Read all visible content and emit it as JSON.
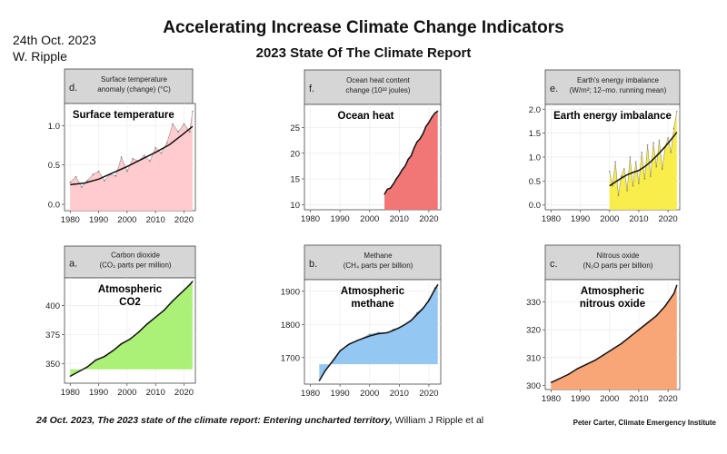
{
  "header": {
    "title": "Accelerating Increase Climate Change Indicators",
    "subtitle": "2023 State Of The Climate Report",
    "date": "24th Oct. 2023",
    "author": "W. Ripple"
  },
  "footer": {
    "citation_date": "24 Oct. 2023,",
    "citation_title": "The 2023 state of the climate report: Entering uncharted territory,",
    "citation_authors": "William J Ripple et al",
    "credit": "Peter Carter, Climate Emergency Institute"
  },
  "chart_data": [
    {
      "id": "d",
      "type": "area",
      "strip_letter": "d.",
      "strip_lines": [
        "Surface temperature",
        "anomaly (change) (°C)"
      ],
      "title": "Surface temperature",
      "color": "#ffc8cc",
      "xlim": [
        1978,
        2024
      ],
      "ylim": [
        -0.08,
        1.28
      ],
      "xticks": [
        1980,
        1990,
        2000,
        2010,
        2020
      ],
      "yticks": [
        0.0,
        0.5,
        1.0
      ],
      "ytick_labels": [
        "0.0",
        "0.5",
        "1.0"
      ],
      "area_x": [
        1980,
        1982,
        1984,
        1986,
        1988,
        1990,
        1992,
        1994,
        1996,
        1998,
        2000,
        2002,
        2004,
        2006,
        2008,
        2010,
        2012,
        2014,
        2016,
        2018,
        2020,
        2022,
        2023
      ],
      "area_y": [
        0.28,
        0.35,
        0.22,
        0.3,
        0.38,
        0.42,
        0.3,
        0.38,
        0.36,
        0.6,
        0.42,
        0.58,
        0.55,
        0.62,
        0.55,
        0.72,
        0.65,
        0.78,
        1.02,
        0.92,
        1.02,
        0.92,
        1.18
      ],
      "trend_x": [
        1980,
        1985,
        1990,
        1995,
        2000,
        2005,
        2010,
        2015,
        2020,
        2023
      ],
      "trend_y": [
        0.25,
        0.27,
        0.32,
        0.4,
        0.48,
        0.57,
        0.66,
        0.76,
        0.9,
        0.99
      ]
    },
    {
      "id": "f",
      "type": "area",
      "strip_letter": "f.",
      "strip_lines": [
        "Ocean heat content",
        "change (10²² joules)"
      ],
      "title": "Ocean heat",
      "color": "#f07070",
      "xlim": [
        1978,
        2024
      ],
      "ylim": [
        9,
        29.5
      ],
      "xticks": [
        1980,
        1990,
        2000,
        2010,
        2020
      ],
      "yticks": [
        10,
        15,
        20,
        25
      ],
      "ytick_labels": [
        "10",
        "15",
        "20",
        "25"
      ],
      "area_x": [
        2005,
        2006,
        2007,
        2008,
        2009,
        2010,
        2011,
        2012,
        2013,
        2014,
        2015,
        2016,
        2017,
        2018,
        2019,
        2020,
        2021,
        2022,
        2023
      ],
      "area_y": [
        12.0,
        13.0,
        13.2,
        14.0,
        15.0,
        15.8,
        16.8,
        17.5,
        18.8,
        19.5,
        21.0,
        22.2,
        22.8,
        23.8,
        25.2,
        26.0,
        27.0,
        27.8,
        28.2
      ],
      "trend_x": [
        2005,
        2006,
        2007,
        2008,
        2009,
        2010,
        2011,
        2012,
        2013,
        2014,
        2015,
        2016,
        2017,
        2018,
        2019,
        2020,
        2021,
        2022,
        2023
      ],
      "trend_y": [
        12.0,
        13.0,
        13.2,
        14.0,
        15.0,
        15.8,
        16.8,
        17.5,
        18.8,
        19.5,
        21.0,
        22.2,
        22.8,
        23.8,
        25.2,
        26.0,
        27.0,
        27.8,
        28.2
      ]
    },
    {
      "id": "e",
      "type": "area",
      "strip_letter": "e.",
      "strip_lines": [
        "Earth's energy imbalance",
        "(W/m²; 12–mo. running mean)"
      ],
      "title": "Earth energy imbalance",
      "color": "#f8ec40",
      "xlim": [
        1978,
        2024
      ],
      "ylim": [
        -0.1,
        2.1
      ],
      "xticks": [
        1980,
        1990,
        2000,
        2010,
        2020
      ],
      "yticks": [
        0.0,
        0.5,
        1.0,
        1.5,
        2.0
      ],
      "ytick_labels": [
        "0.0",
        "0.5",
        "1.0",
        "1.5",
        "2.0"
      ],
      "area_x": [
        2000,
        2001,
        2002,
        2003,
        2004,
        2005,
        2006,
        2007,
        2008,
        2009,
        2010,
        2011,
        2012,
        2013,
        2014,
        2015,
        2016,
        2017,
        2018,
        2019,
        2020,
        2021,
        2022,
        2023
      ],
      "area_y": [
        0.7,
        0.4,
        0.9,
        0.2,
        0.6,
        0.75,
        0.3,
        1.0,
        0.4,
        0.9,
        0.45,
        1.1,
        0.55,
        1.25,
        0.6,
        1.3,
        0.8,
        1.35,
        0.75,
        1.2,
        1.4,
        1.1,
        1.6,
        1.95
      ],
      "trend_x": [
        2000,
        2002,
        2004,
        2006,
        2008,
        2010,
        2012,
        2014,
        2016,
        2018,
        2020,
        2022,
        2023
      ],
      "trend_y": [
        0.4,
        0.48,
        0.56,
        0.63,
        0.68,
        0.72,
        0.8,
        0.9,
        1.02,
        1.15,
        1.29,
        1.44,
        1.52
      ]
    },
    {
      "id": "a",
      "type": "area",
      "strip_letter": "a.",
      "strip_lines": [
        "Carbon dioxide",
        "(CO₂ parts per million)"
      ],
      "title": "Atmospheric\nCO2",
      "color": "#a8f070",
      "xlim": [
        1978,
        2024
      ],
      "ylim": [
        333,
        424
      ],
      "xticks": [
        1980,
        1990,
        2000,
        2010,
        2020
      ],
      "yticks": [
        350,
        375,
        400
      ],
      "ytick_labels": [
        "350",
        "375",
        "400"
      ],
      "area_x": [
        1980,
        1983,
        1986,
        1989,
        1992,
        1995,
        1998,
        2001,
        2004,
        2007,
        2010,
        2013,
        2016,
        2019,
        2022,
        2023
      ],
      "area_y": [
        339,
        343,
        347,
        353,
        356,
        361,
        367,
        371,
        377,
        384,
        390,
        396,
        404,
        411,
        418,
        421
      ],
      "trend_x": [
        1980,
        1983,
        1986,
        1989,
        1992,
        1995,
        1998,
        2001,
        2004,
        2007,
        2010,
        2013,
        2016,
        2019,
        2022,
        2023
      ],
      "trend_y": [
        339,
        343,
        347,
        353,
        356,
        361,
        367,
        371,
        377,
        384,
        390,
        396,
        404,
        411,
        418,
        421
      ]
    },
    {
      "id": "b",
      "type": "area",
      "strip_letter": "b.",
      "strip_lines": [
        "Methane",
        "(CH₄ parts per billion)"
      ],
      "title": "Atmospheric\nmethane",
      "color": "#8fc4f2",
      "xlim": [
        1978,
        2024
      ],
      "ylim": [
        1620,
        1935
      ],
      "xticks": [
        1980,
        1990,
        2000,
        2010,
        2020
      ],
      "yticks": [
        1700,
        1800,
        1900
      ],
      "ytick_labels": [
        "1700",
        "1800",
        "1900"
      ],
      "area_x": [
        1983,
        1985,
        1988,
        1990,
        1993,
        1996,
        2000,
        2003,
        2006,
        2008,
        2010,
        2012,
        2014,
        2016,
        2018,
        2020,
        2022,
        2023
      ],
      "area_y": [
        1630,
        1660,
        1695,
        1720,
        1740,
        1752,
        1770,
        1775,
        1775,
        1785,
        1790,
        1800,
        1812,
        1835,
        1850,
        1875,
        1910,
        1920
      ],
      "trend_x": [
        1983,
        1985,
        1988,
        1990,
        1993,
        1996,
        2000,
        2003,
        2006,
        2008,
        2010,
        2012,
        2014,
        2016,
        2018,
        2020,
        2022,
        2023
      ],
      "trend_y": [
        1630,
        1660,
        1695,
        1720,
        1740,
        1752,
        1765,
        1772,
        1775,
        1782,
        1790,
        1800,
        1812,
        1830,
        1848,
        1872,
        1905,
        1920
      ]
    },
    {
      "id": "c",
      "type": "area",
      "strip_letter": "c.",
      "strip_lines": [
        "Nitrous oxide",
        "(N₂O parts per billion)"
      ],
      "title": "Atmospheric\nnitrous oxide",
      "color": "#f8a070",
      "xlim": [
        1978,
        2024
      ],
      "ylim": [
        298.5,
        338
      ],
      "xticks": [
        1980,
        1990,
        2000,
        2010,
        2020
      ],
      "yticks": [
        300,
        310,
        320,
        330
      ],
      "ytick_labels": [
        "300",
        "310",
        "320",
        "330"
      ],
      "area_x": [
        1980,
        1983,
        1986,
        1989,
        1992,
        1995,
        1998,
        2001,
        2004,
        2007,
        2010,
        2013,
        2016,
        2019,
        2022,
        2023
      ],
      "area_y": [
        301,
        302.5,
        304,
        306,
        307.5,
        309,
        311,
        313,
        315,
        317.5,
        320,
        322.5,
        325,
        328.5,
        333,
        336
      ],
      "trend_x": [
        1980,
        1983,
        1986,
        1989,
        1992,
        1995,
        1998,
        2001,
        2004,
        2007,
        2010,
        2013,
        2016,
        2019,
        2022,
        2023
      ],
      "trend_y": [
        301,
        302.5,
        304,
        306,
        307.5,
        309,
        311,
        313,
        315,
        317.5,
        320,
        322.5,
        325,
        328.5,
        333,
        336
      ]
    }
  ]
}
